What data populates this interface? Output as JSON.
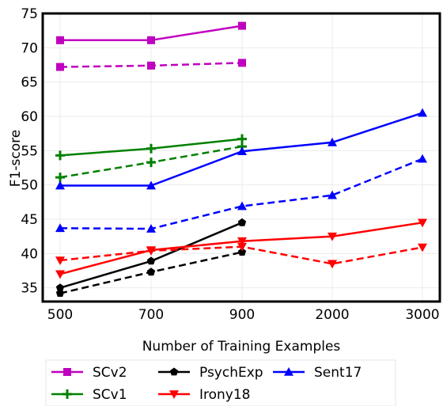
{
  "chart_data": {
    "type": "line",
    "xlabel": "Number of Training Examples",
    "ylabel": "F1-score",
    "x_categories": [
      "500",
      "700",
      "900",
      "2000",
      "3000"
    ],
    "ylim": [
      33,
      75
    ],
    "y_ticks": [
      35,
      40,
      45,
      50,
      55,
      60,
      65,
      70,
      75
    ],
    "grid": true,
    "legend_placement": "bottom",
    "series": [
      {
        "name": "SCv2",
        "color": "#c000c0",
        "marker": "square",
        "linestyle": "solid",
        "x": [
          "500",
          "700",
          "900"
        ],
        "values": [
          71.1,
          71.1,
          73.2
        ]
      },
      {
        "name": "SCv2",
        "color": "#c000c0",
        "marker": "square",
        "linestyle": "dashed",
        "x": [
          "500",
          "700",
          "900"
        ],
        "values": [
          67.2,
          67.4,
          67.8
        ]
      },
      {
        "name": "SCv1",
        "color": "#008000",
        "marker": "plus",
        "linestyle": "solid",
        "x": [
          "500",
          "700",
          "900"
        ],
        "values": [
          54.3,
          55.3,
          56.7
        ]
      },
      {
        "name": "SCv1",
        "color": "#008000",
        "marker": "plus",
        "linestyle": "dashed",
        "x": [
          "500",
          "700",
          "900"
        ],
        "values": [
          51.1,
          53.3,
          55.6
        ]
      },
      {
        "name": "PsychExp",
        "color": "#000000",
        "marker": "pentagon",
        "linestyle": "solid",
        "x": [
          "500",
          "700",
          "900"
        ],
        "values": [
          35.0,
          38.9,
          44.5
        ]
      },
      {
        "name": "PsychExp",
        "color": "#000000",
        "marker": "pentagon",
        "linestyle": "dashed",
        "x": [
          "500",
          "700",
          "900"
        ],
        "values": [
          34.2,
          37.3,
          40.2
        ]
      },
      {
        "name": "Irony18",
        "color": "#ff0000",
        "marker": "triangle-down",
        "linestyle": "solid",
        "x": [
          "500",
          "700",
          "900",
          "2000",
          "3000"
        ],
        "values": [
          37.0,
          40.5,
          41.8,
          42.5,
          44.5
        ]
      },
      {
        "name": "Irony18",
        "color": "#ff0000",
        "marker": "triangle-down",
        "linestyle": "dashed",
        "x": [
          "500",
          "700",
          "900",
          "2000",
          "3000"
        ],
        "values": [
          39.0,
          40.4,
          41.0,
          38.5,
          40.9
        ]
      },
      {
        "name": "Sent17",
        "color": "#0000ff",
        "marker": "triangle-up",
        "linestyle": "solid",
        "x": [
          "500",
          "700",
          "900",
          "2000",
          "3000"
        ],
        "values": [
          49.9,
          49.9,
          54.9,
          56.2,
          60.5
        ]
      },
      {
        "name": "Sent17",
        "color": "#0000ff",
        "marker": "triangle-up",
        "linestyle": "dashed",
        "x": [
          "500",
          "700",
          "900",
          "2000",
          "3000"
        ],
        "values": [
          43.7,
          43.6,
          46.9,
          48.5,
          53.8
        ]
      }
    ],
    "legend": [
      {
        "label": "SCv2",
        "color": "#c000c0",
        "marker": "square"
      },
      {
        "label": "SCv1",
        "color": "#008000",
        "marker": "plus"
      },
      {
        "label": "PsychExp",
        "color": "#000000",
        "marker": "pentagon"
      },
      {
        "label": "Irony18",
        "color": "#ff0000",
        "marker": "triangle-down"
      },
      {
        "label": "Sent17",
        "color": "#0000ff",
        "marker": "triangle-up"
      }
    ]
  }
}
